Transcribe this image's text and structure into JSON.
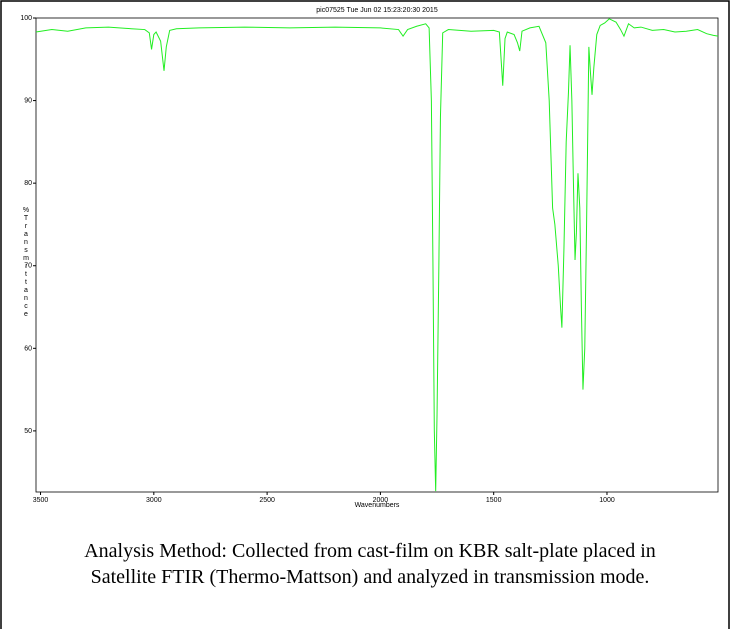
{
  "chart_data": {
    "type": "line",
    "title": "pic07525   Tue Jun 02 15:23:20:30 2015",
    "x_label": "Wavenumbers",
    "y_label": "%Transmittance",
    "caption": "Analysis Method: Collected from cast-film on KBR salt-plate placed in Satellite FTIR (Thermo-Mattson) and analyzed in transmission mode.",
    "xlim": [
      3520,
      510
    ],
    "ylim": [
      42.6,
      100
    ],
    "xticks": [
      3500,
      3000,
      2500,
      2000,
      1500,
      1000
    ],
    "yticks": [
      50,
      60,
      70,
      80,
      90,
      100
    ],
    "x": [
      3520,
      3450,
      3380,
      3300,
      3200,
      3100,
      3040,
      3020,
      3010,
      3000,
      2990,
      2970,
      2955,
      2945,
      2930,
      2900,
      2800,
      2600,
      2400,
      2200,
      2000,
      1920,
      1900,
      1880,
      1840,
      1800,
      1785,
      1775,
      1768,
      1762,
      1756,
      1750,
      1742,
      1735,
      1725,
      1700,
      1600,
      1500,
      1475,
      1465,
      1460,
      1450,
      1440,
      1410,
      1395,
      1385,
      1375,
      1340,
      1300,
      1270,
      1255,
      1240,
      1230,
      1215,
      1205,
      1199,
      1190,
      1180,
      1170,
      1163,
      1155,
      1148,
      1141,
      1135,
      1128,
      1120,
      1113,
      1106,
      1098,
      1090,
      1080,
      1072,
      1066,
      1058,
      1045,
      1030,
      1010,
      990,
      960,
      940,
      925,
      905,
      880,
      850,
      800,
      750,
      700,
      650,
      600,
      560,
      530,
      510
    ],
    "series": [
      {
        "name": "%Transmittance",
        "color": "#22ee22",
        "values": [
          98.3,
          98.6,
          98.4,
          98.8,
          98.9,
          98.7,
          98.6,
          98.2,
          96.2,
          98.0,
          98.3,
          97.2,
          93.6,
          96.5,
          98.5,
          98.7,
          98.8,
          98.9,
          98.8,
          98.9,
          98.8,
          98.6,
          97.8,
          98.6,
          99.0,
          99.3,
          98.8,
          90.0,
          70.0,
          50.0,
          42.7,
          52.0,
          70.0,
          88.0,
          98.2,
          98.6,
          98.4,
          98.5,
          98.3,
          94.0,
          91.8,
          97.5,
          98.3,
          98.0,
          97.0,
          96.0,
          98.4,
          98.8,
          99.0,
          97.0,
          90.0,
          77.0,
          75.0,
          70.0,
          65.0,
          62.5,
          72.0,
          85.0,
          91.0,
          96.7,
          90.0,
          80.0,
          70.7,
          74.0,
          81.2,
          77.0,
          65.0,
          55.0,
          60.0,
          75.0,
          96.5,
          93.0,
          90.7,
          94.0,
          98.0,
          99.1,
          99.4,
          99.9,
          99.5,
          98.6,
          97.8,
          99.3,
          98.8,
          98.9,
          98.5,
          98.6,
          98.3,
          98.4,
          98.6,
          98.1,
          97.9,
          97.8
        ]
      }
    ]
  }
}
